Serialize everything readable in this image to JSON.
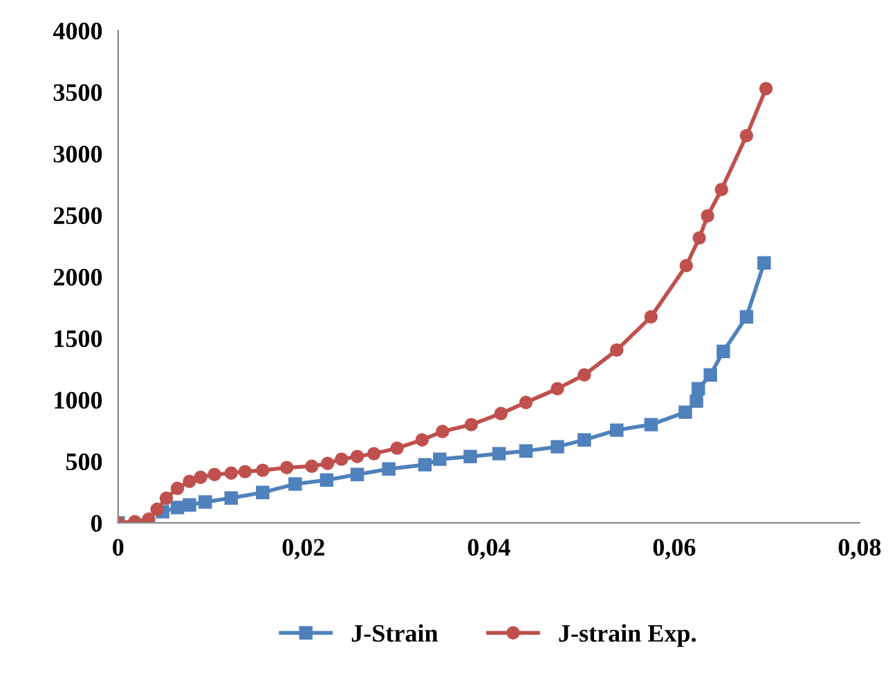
{
  "chart_data": {
    "type": "line",
    "xlim": [
      0,
      0.08
    ],
    "ylim": [
      0,
      4000
    ],
    "xticks": [
      0,
      {
        "value": 0.02,
        "label": "0,02"
      },
      {
        "value": 0.04,
        "label": "0,04"
      },
      {
        "value": 0.06,
        "label": "0,06"
      },
      {
        "value": 0.08,
        "label": "0,08"
      }
    ],
    "yticks": [
      0,
      500,
      1000,
      1500,
      2000,
      2500,
      3000,
      3500,
      4000
    ],
    "grid": false,
    "legend": "bottom",
    "line_style": "solid",
    "series": [
      {
        "name": "J-Strain",
        "color": "#4f81bd",
        "marker": "square",
        "x": [
          0,
          0.0034,
          0.0048,
          0.0064,
          0.0077,
          0.0094,
          0.0122,
          0.0156,
          0.0191,
          0.0225,
          0.0258,
          0.0292,
          0.0331,
          0.0347,
          0.038,
          0.0411,
          0.044,
          0.0474,
          0.0503,
          0.0538,
          0.0575,
          0.0612,
          0.0624,
          0.0626,
          0.0639,
          0.0653,
          0.0678,
          0.0697
        ],
        "values": [
          0,
          null,
          90,
          124,
          146,
          169,
          202,
          247,
          315,
          348,
          393,
          438,
          472,
          517,
          539,
          562,
          584,
          618,
          674,
          753,
          798,
          899,
          989,
          1090,
          1202,
          1393,
          1674,
          2112
        ]
      },
      {
        "name": "J-strain Exp.",
        "color": "#c0504d",
        "marker": "circle",
        "x": [
          0,
          0.0018,
          0.0033,
          0.0042,
          0.0052,
          0.0064,
          0.0077,
          0.0089,
          0.0104,
          0.0122,
          0.0137,
          0.0156,
          0.0182,
          0.0209,
          0.0226,
          0.0241,
          0.0258,
          0.0276,
          0.0301,
          0.0328,
          0.035,
          0.0381,
          0.0413,
          0.044,
          0.0474,
          0.0503,
          0.0538,
          0.0575,
          0.0613,
          0.0627,
          0.0636,
          0.0651,
          0.0678,
          0.0699
        ],
        "values": [
          0,
          10,
          30,
          110,
          200,
          280,
          337,
          370,
          393,
          404,
          416,
          427,
          449,
          460,
          483,
          517,
          539,
          562,
          607,
          674,
          742,
          798,
          888,
          978,
          1090,
          1202,
          1404,
          1674,
          2090,
          2315,
          2494,
          2708,
          3146,
          3528
        ]
      }
    ]
  }
}
